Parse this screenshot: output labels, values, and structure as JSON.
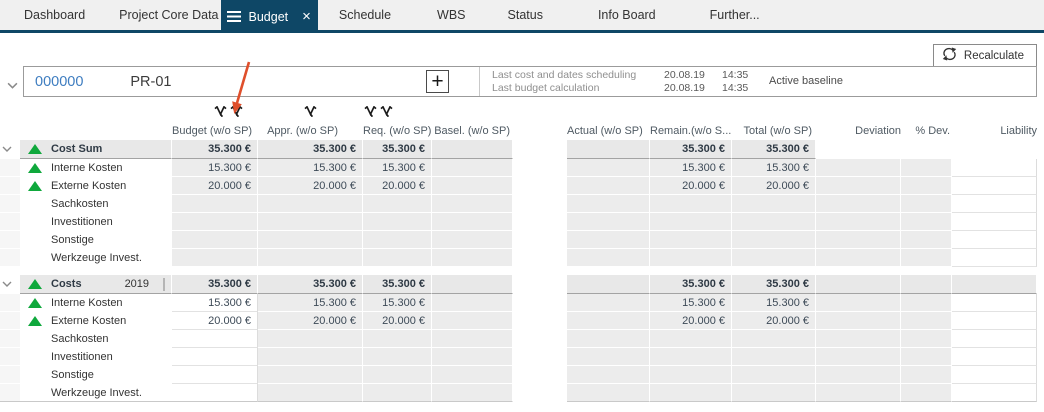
{
  "nav": {
    "tabs": [
      {
        "label": "Dashboard",
        "active": false
      },
      {
        "label": "Project Core Data",
        "active": false
      },
      {
        "label": "Budget",
        "active": true
      },
      {
        "label": "Schedule",
        "active": false
      },
      {
        "label": "WBS",
        "active": false
      },
      {
        "label": "Status",
        "active": false
      },
      {
        "label": "Info Board",
        "active": false
      },
      {
        "label": "Further...",
        "active": false
      }
    ]
  },
  "toolbar": {
    "recalculate_label": "Recalculate"
  },
  "project": {
    "id": "000000",
    "code": "PR-01",
    "info_rows": [
      {
        "label": "Last cost and dates scheduling",
        "date": "20.08.19",
        "time": "14:35"
      },
      {
        "label": "Last budget calculation",
        "date": "20.08.19",
        "time": "14:35"
      }
    ],
    "baseline": "Active baseline"
  },
  "table": {
    "columns": [
      {
        "key": "budget",
        "label": "Budget (w/o SP)",
        "filter_count": 2
      },
      {
        "key": "appr",
        "label": "Appr. (w/o SP)",
        "filter_count": 1
      },
      {
        "key": "req",
        "label": "Req. (w/o SP)",
        "filter_count": 2
      },
      {
        "key": "basel",
        "label": "Basel. (w/o SP)",
        "filter_count": 0
      },
      {
        "key": "actual",
        "label": "Actual (w/o SP)",
        "filter_count": 0
      },
      {
        "key": "remain",
        "label": "Remain.(w/o S...",
        "filter_count": 0
      },
      {
        "key": "total",
        "label": "Total (w/o SP)",
        "filter_count": 0
      },
      {
        "key": "deviation",
        "label": "Deviation",
        "filter_count": 0
      },
      {
        "key": "pdev",
        "label": "% Dev.",
        "filter_count": 0
      },
      {
        "key": "liability",
        "label": "Liability",
        "filter_count": 0
      }
    ],
    "groups": [
      {
        "label": "Cost Sum",
        "trend": "up",
        "year": null,
        "selected": false,
        "editable_budget": false,
        "summary": {
          "budget": "35.300 €",
          "appr": "35.300 €",
          "req": "35.300 €",
          "remain": "35.300 €",
          "total": "35.300 €"
        },
        "rows": [
          {
            "label": "Interne Kosten",
            "trend": "up",
            "values": {
              "budget": "15.300 €",
              "appr": "15.300 €",
              "req": "15.300 €",
              "remain": "15.300 €",
              "total": "15.300 €"
            }
          },
          {
            "label": "Externe Kosten",
            "trend": "up",
            "values": {
              "budget": "20.000 €",
              "appr": "20.000 €",
              "req": "20.000 €",
              "remain": "20.000 €",
              "total": "20.000 €"
            }
          },
          {
            "label": "Sachkosten",
            "trend": null,
            "values": {}
          },
          {
            "label": "Investitionen",
            "trend": null,
            "values": {}
          },
          {
            "label": "Sonstige",
            "trend": null,
            "values": {}
          },
          {
            "label": "Werkzeuge Invest.",
            "trend": null,
            "values": {}
          }
        ]
      },
      {
        "label": "Costs",
        "trend": "up",
        "year": "2019",
        "selected": true,
        "editable_budget": true,
        "checkbox_small_checked": true,
        "checkbox_big_checked": true,
        "summary": {
          "budget": "35.300 €",
          "appr": "35.300 €",
          "req": "35.300 €",
          "remain": "35.300 €",
          "total": "35.300 €"
        },
        "rows": [
          {
            "label": "Interne Kosten",
            "trend": "up",
            "values": {
              "budget": "15.300 €",
              "appr": "15.300 €",
              "req": "15.300 €",
              "remain": "15.300 €",
              "total": "15.300 €"
            }
          },
          {
            "label": "Externe Kosten",
            "trend": "up",
            "values": {
              "budget": "20.000 €",
              "appr": "20.000 €",
              "req": "20.000 €",
              "remain": "20.000 €",
              "total": "20.000 €"
            }
          },
          {
            "label": "Sachkosten",
            "trend": null,
            "values": {}
          },
          {
            "label": "Investitionen",
            "trend": null,
            "values": {}
          },
          {
            "label": "Sonstige",
            "trend": null,
            "values": {}
          },
          {
            "label": "Werkzeuge Invest.",
            "trend": null,
            "values": {}
          }
        ]
      }
    ]
  },
  "colors": {
    "accent_navy": "#0e4766",
    "project_id_blue": "#3e7dc0",
    "positive_green": "#0fa83c",
    "annotation_arrow_orange": "#df4f2b",
    "cell_grey": "#ececec",
    "summary_grey": "#e8e8e8"
  }
}
